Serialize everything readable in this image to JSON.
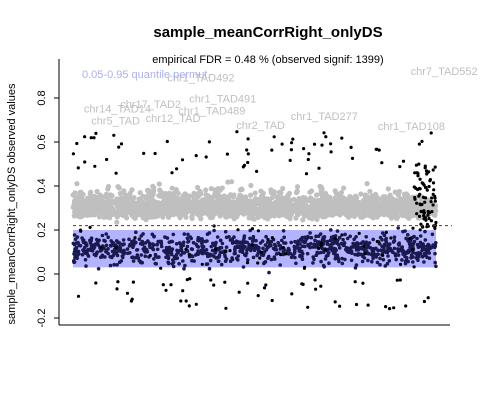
{
  "chart_data": {
    "type": "scatter",
    "title": "sample_meanCorrRight_onlyDS",
    "subtitle": "empirical FDR = 0.48 % (observed signif: 1399)",
    "xlabel": "",
    "ylabel": "sample_meanCorrRight_onlyDS observed values",
    "ylim": [
      -0.23,
      0.96
    ],
    "yticks": [
      -0.2,
      0.0,
      0.2,
      0.4,
      0.6,
      0.8
    ],
    "ytick_labels": [
      "-0.2",
      "0.0",
      "0.2",
      "0.4",
      "0.6",
      "0.8"
    ],
    "n_points": 2000,
    "quantile_band": {
      "label": "0.05-0.95 quantile permut.",
      "lower": 0.03,
      "upper": 0.2,
      "color": "#b3b3ff"
    },
    "threshold": {
      "value": 0.22,
      "color": "#cc0000",
      "style": "dashed"
    },
    "colors": {
      "nonsignif": "#bfbfbf",
      "signif": "#000000",
      "permut": "#1a1a50"
    },
    "annotations": [
      {
        "label": "chr1_TAD492",
        "x": 0.26,
        "y": 0.875
      },
      {
        "label": "chr7_TAD552",
        "x": 0.93,
        "y": 0.905
      },
      {
        "label": "chr1_TAD491",
        "x": 0.32,
        "y": 0.78
      },
      {
        "label": "chr1_TAD489",
        "x": 0.29,
        "y": 0.725
      },
      {
        "label": "chr17_TAD2",
        "x": 0.13,
        "y": 0.755
      },
      {
        "label": "chr14_TAD14",
        "x": 0.03,
        "y": 0.735
      },
      {
        "label": "chr1_TAD277",
        "x": 0.6,
        "y": 0.7
      },
      {
        "label": "chr1_TAD108",
        "x": 0.84,
        "y": 0.655
      },
      {
        "label": "chr2_TAD",
        "x": 0.45,
        "y": 0.66
      },
      {
        "label": "chr5_TAD",
        "x": 0.05,
        "y": 0.68
      },
      {
        "label": "chr12_TAD",
        "x": 0.2,
        "y": 0.69
      }
    ]
  }
}
